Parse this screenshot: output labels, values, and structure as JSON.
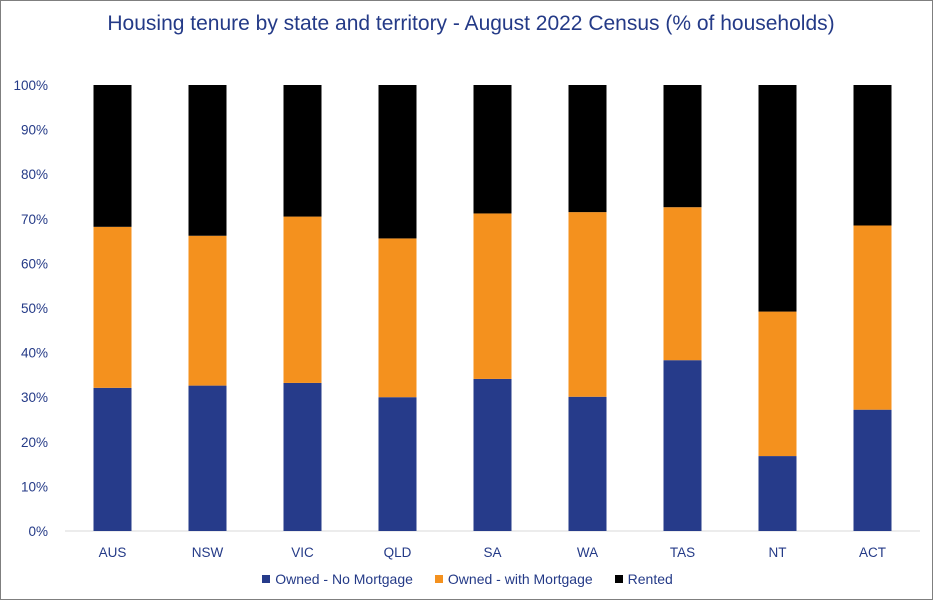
{
  "chart_data": {
    "type": "bar",
    "stacked": true,
    "title": "Housing tenure by state and territory - August 2022 Census (% of households)",
    "xlabel": "",
    "ylabel": "",
    "ylim": [
      0,
      100
    ],
    "yticks": [
      "0%",
      "10%",
      "20%",
      "30%",
      "40%",
      "50%",
      "60%",
      "70%",
      "80%",
      "90%",
      "100%"
    ],
    "grid": false,
    "legend": "bottom",
    "categories": [
      "AUS",
      "NSW",
      "VIC",
      "QLD",
      "SA",
      "WA",
      "TAS",
      "NT",
      "ACT"
    ],
    "series": [
      {
        "name": "Owned - No Mortgage",
        "color": "#263b8a",
        "values": [
          32.1,
          32.6,
          33.2,
          30.0,
          34.1,
          30.1,
          38.3,
          16.8,
          27.2
        ]
      },
      {
        "name": "Owned - with Mortgage",
        "color": "#f4911e",
        "values": [
          36.1,
          33.6,
          37.3,
          35.6,
          37.1,
          41.4,
          34.3,
          32.4,
          41.3
        ]
      },
      {
        "name": "Rented",
        "color": "#000000",
        "values": [
          31.8,
          33.8,
          29.5,
          34.4,
          28.8,
          28.5,
          27.4,
          50.8,
          31.5
        ]
      }
    ]
  }
}
